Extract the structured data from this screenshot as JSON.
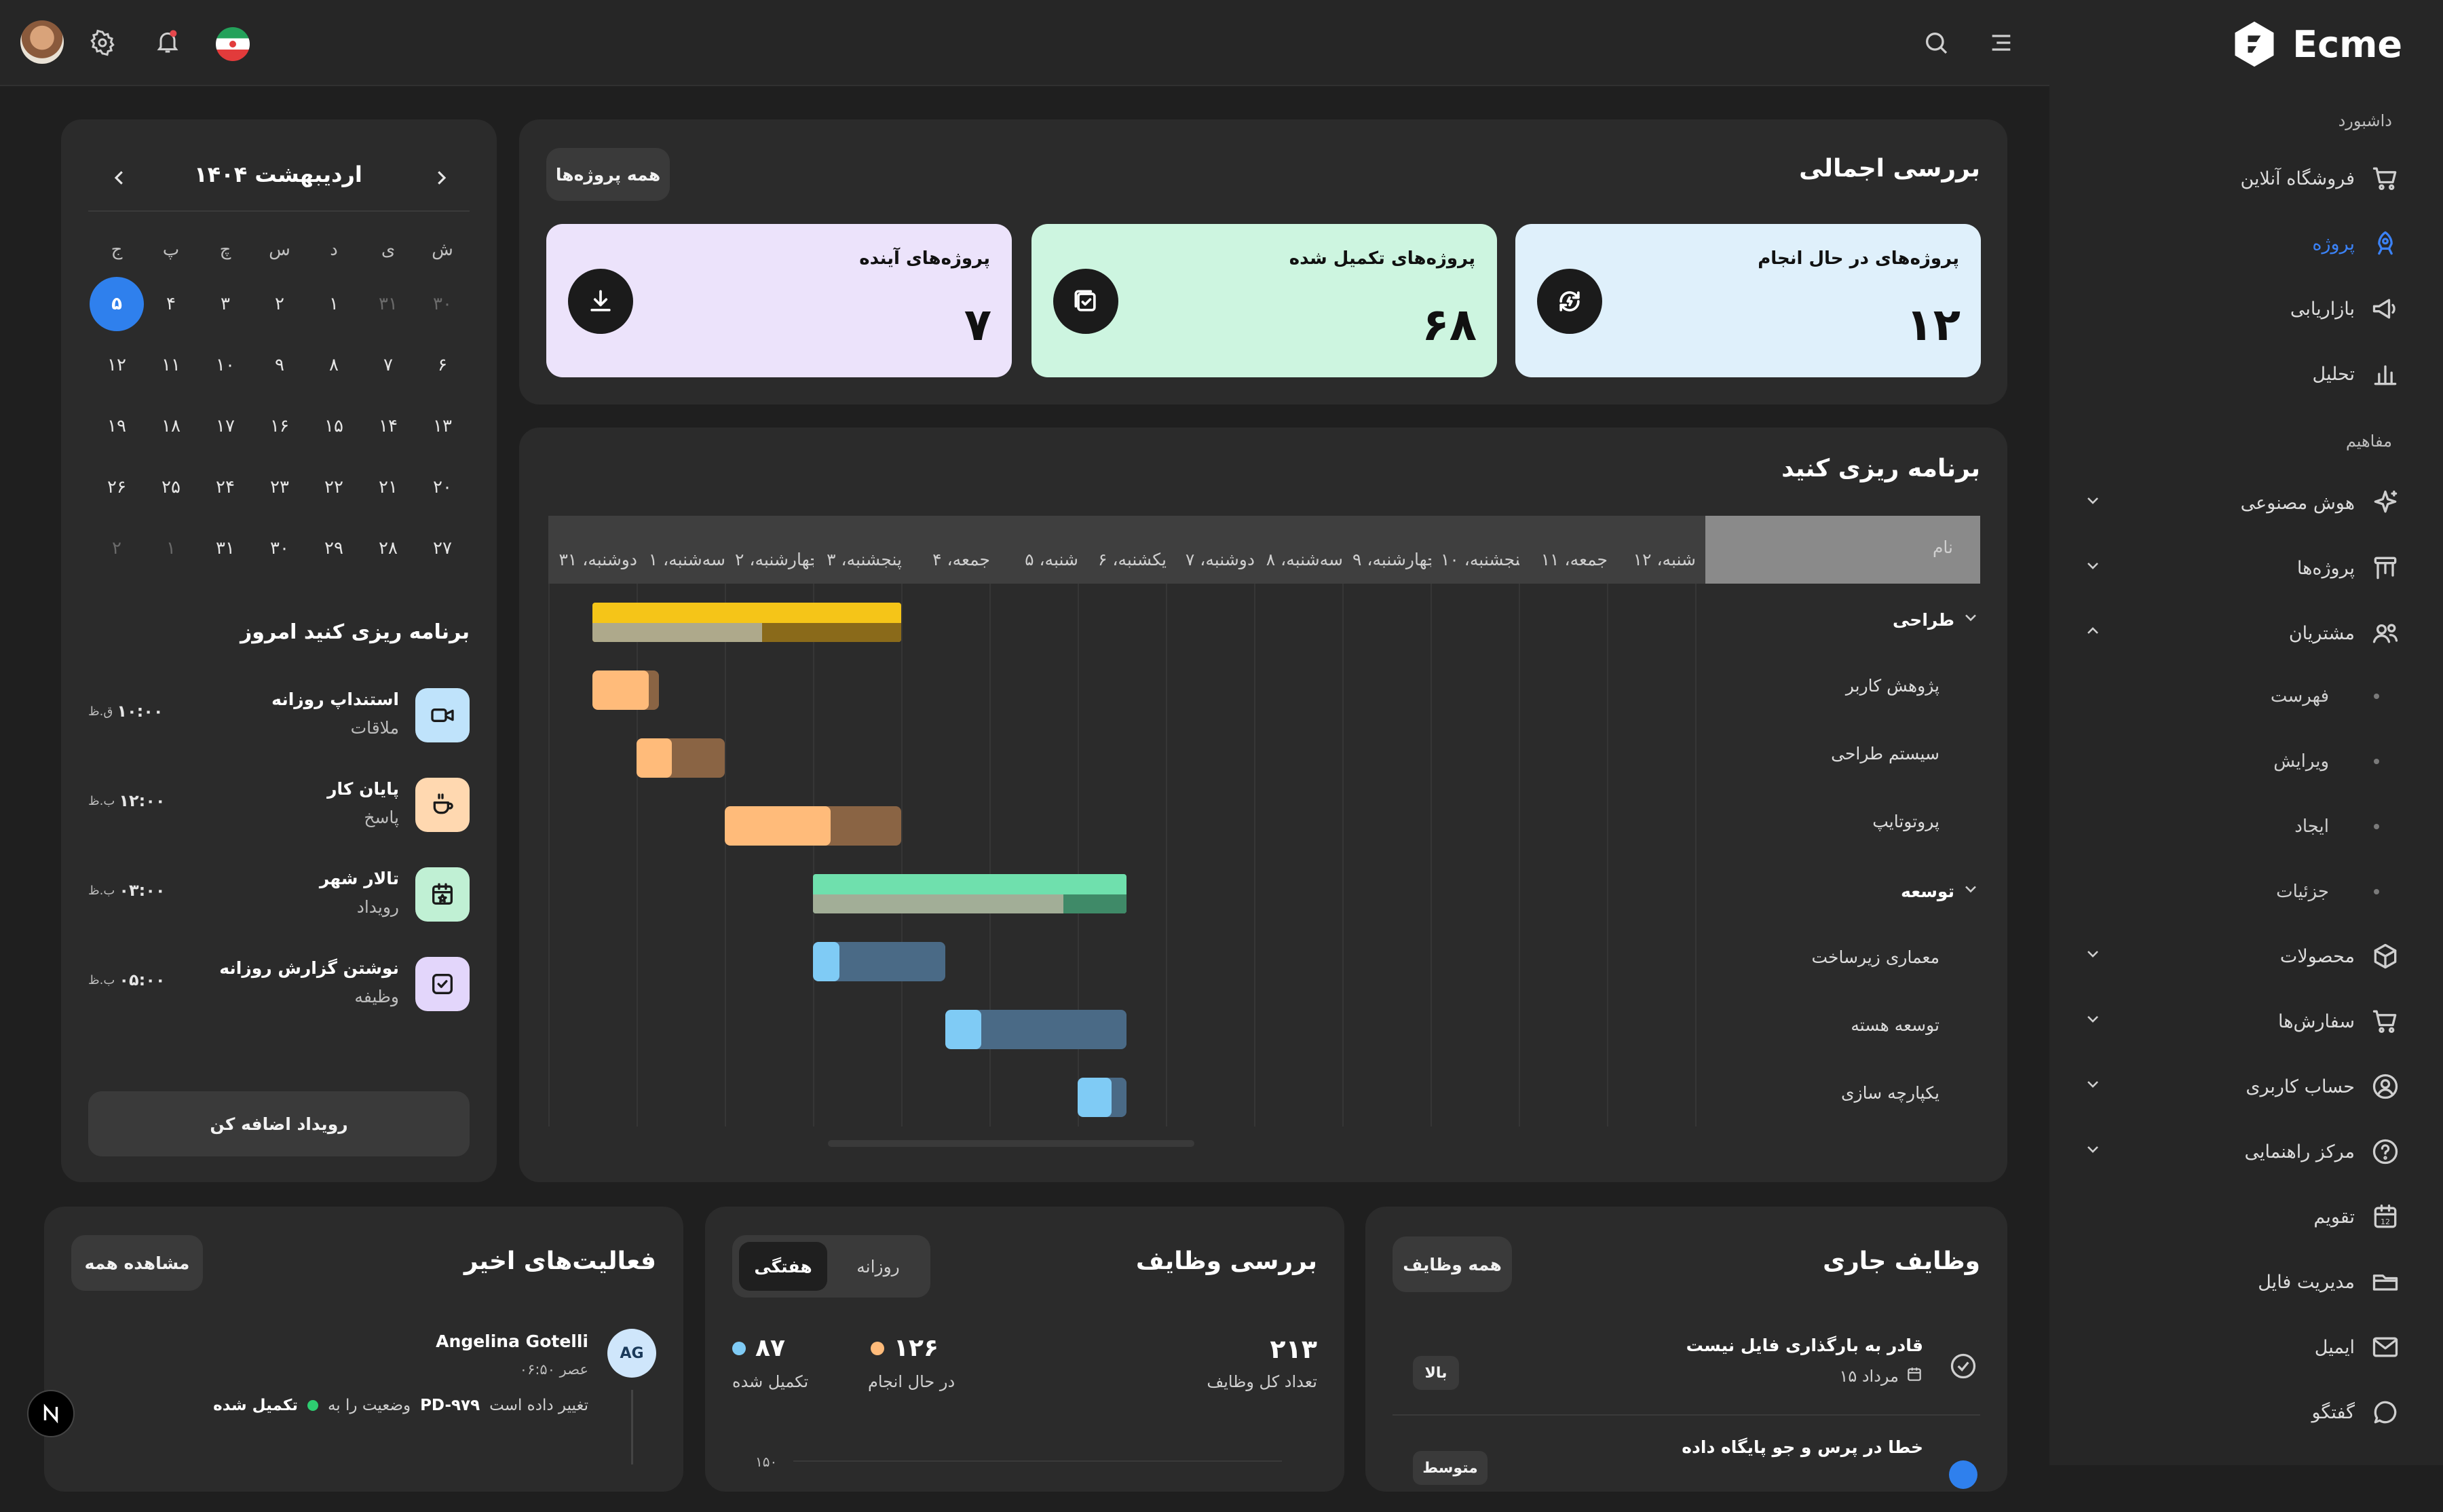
{
  "sidebar": {
    "logo": "Ecme",
    "sec_dashboard": "داشبورد",
    "dashboard_items": [
      {
        "label": "فروشگاه آنلاین",
        "icon": "cart-icon"
      },
      {
        "label": "پروژه",
        "icon": "rocket-icon",
        "active": true
      },
      {
        "label": "بازاریابی",
        "icon": "megaphone-icon"
      },
      {
        "label": "تحلیل",
        "icon": "bar-chart-icon"
      }
    ],
    "sec_concepts": "مفاهیم",
    "concept_items": [
      {
        "label": "هوش مصنوعی",
        "icon": "sparkle-icon",
        "chev": "down"
      },
      {
        "label": "پروژه‌ها",
        "icon": "kanban-icon",
        "chev": "down"
      },
      {
        "label": "مشتریان",
        "icon": "users-icon",
        "chev": "up"
      }
    ],
    "customer_sub": [
      "فهرست",
      "ویرایش",
      "ایجاد",
      "جزئیات"
    ],
    "more_items": [
      {
        "label": "محصولات",
        "icon": "box-icon",
        "chev": "down"
      },
      {
        "label": "سفارش‌ها",
        "icon": "cart-icon",
        "chev": "down"
      },
      {
        "label": "حساب کاربری",
        "icon": "user-circle-icon",
        "chev": "down"
      },
      {
        "label": "مرکز راهنمایی",
        "icon": "help-icon",
        "chev": "down"
      },
      {
        "label": "تقویم",
        "icon": "calendar-icon",
        "chev": ""
      },
      {
        "label": "مدیریت فایل",
        "icon": "folder-icon",
        "chev": ""
      },
      {
        "label": "ایمیل",
        "icon": "mail-icon",
        "chev": ""
      },
      {
        "label": "گفتگو",
        "icon": "chat-icon",
        "chev": ""
      }
    ]
  },
  "overview": {
    "title": "بررسی اجمالی",
    "all_projects_btn": "همه پروژه‌ها",
    "stats": [
      {
        "label": "پروژه‌های در حال انجام",
        "value": "۱۲",
        "color": "#dff0fb",
        "icon": "refresh-icon"
      },
      {
        "label": "پروژه‌های تکمیل شده",
        "value": "۶۸",
        "color": "#cdf5e0",
        "icon": "check-square-icon"
      },
      {
        "label": "پروژه‌های آینده",
        "value": "۷",
        "color": "#ece3fb",
        "icon": "download-icon"
      }
    ]
  },
  "gantt": {
    "title": "برنامه ریزی کنید",
    "name_col": "نام",
    "days": [
      "شنبه، ۱۲",
      "جمعه، ۱۱",
      "پنجشنبه، ۱۰",
      "چهارشنبه، ۹",
      "سه‌شنبه، ۸",
      "دوشنبه، ۷",
      "یکشنبه، ۶",
      "شنبه، ۵",
      "جمعه، ۴",
      "پنجشنبه، ۳",
      "چهارشنبه، ۲",
      "سه‌شنبه، ۱",
      "دوشنبه، ۳۱"
    ],
    "rows": [
      {
        "label": "طراحی",
        "group": true
      },
      {
        "label": "پژوهش کاربر"
      },
      {
        "label": "سیستم طراحی"
      },
      {
        "label": "پروتوتایپ"
      },
      {
        "label": "توسعه",
        "group": true
      },
      {
        "label": "معماری زیرساخت"
      },
      {
        "label": "توسعه هسته"
      },
      {
        "label": "یکپارچه سازی"
      }
    ]
  },
  "calendar": {
    "month": "اردیبهشت ۱۴۰۴",
    "weekdays": [
      "ش",
      "ی",
      "د",
      "س",
      "چ",
      "پ",
      "ج"
    ],
    "weeks": [
      [
        "۳۰",
        "۳۱",
        "۱",
        "۲",
        "۳",
        "۴",
        "۵"
      ],
      [
        "۶",
        "۷",
        "۸",
        "۹",
        "۱۰",
        "۱۱",
        "۱۲"
      ],
      [
        "۱۳",
        "۱۴",
        "۱۵",
        "۱۶",
        "۱۷",
        "۱۸",
        "۱۹"
      ],
      [
        "۲۰",
        "۲۱",
        "۲۲",
        "۲۳",
        "۲۴",
        "۲۵",
        "۲۶"
      ],
      [
        "۲۷",
        "۲۸",
        "۲۹",
        "۳۰",
        "۳۱",
        "۱",
        "۲"
      ]
    ]
  },
  "schedule": {
    "title": "برنامه ریزی کنید امروز",
    "items": [
      {
        "title": "استنداپ روزانه",
        "sub": "ملاقات",
        "time": "۱۰:۰۰",
        "suffix": "ق.ظ",
        "color": "#bfe3fb",
        "icon": "video-icon"
      },
      {
        "title": "پایان کار",
        "sub": "پاسخ",
        "time": "۱۲:۰۰",
        "suffix": "ب.ظ",
        "color": "#ffd8b0",
        "icon": "coffee-icon"
      },
      {
        "title": "تالار شهر",
        "sub": "رویداد",
        "time": "۰۳:۰۰",
        "suffix": "ب.ظ",
        "color": "#c0f0d4",
        "icon": "calendar-star-icon"
      },
      {
        "title": "نوشتن گزارش روزانه",
        "sub": "وظیفه",
        "time": "۰۵:۰۰",
        "suffix": "ب.ظ",
        "color": "#e3d6fb",
        "icon": "check-box-icon"
      }
    ],
    "add_btn": "رویداد اضافه کن"
  },
  "current_tasks": {
    "title": "وظایف جاری",
    "all_btn": "همه وظایف",
    "items": [
      {
        "title": "قادر به بارگذاری فایل نیست",
        "date": "۱۵ مرداد",
        "badge": "بالا"
      },
      {
        "title": "خطا در پرس و جو پایگاه داده",
        "badge": "متوسط"
      }
    ]
  },
  "tasks_overview": {
    "title": "بررسی وظایف",
    "tabs": [
      "روزانه",
      "هفتگی"
    ],
    "total_label": "تعداد کل وظایف",
    "total": "۲۱۳",
    "inprogress_label": "در حال انجام",
    "inprogress": "۱۲۶",
    "done_label": "تکمیل شده",
    "done": "۸۷",
    "axis_top": "۱۵۰"
  },
  "activities": {
    "title": "فعالیت‌های اخیر",
    "view_all": "مشاهده همه",
    "items": [
      {
        "initials": "AG",
        "name": "Angelina Gotelli",
        "time": "۰۶:۵۰ عصر",
        "text_a": "تغییر داده است",
        "code": "PD-۹۷۹",
        "text_b": "وضعیت را به",
        "status": "تکمیل شده"
      }
    ]
  },
  "colors": {
    "accent": "#2f80ed",
    "gantt_design": "#f5c518",
    "gantt_research": "#ffbb7a",
    "gantt_dev": "#6fe0ad",
    "gantt_infra": "#7fcbf5"
  }
}
